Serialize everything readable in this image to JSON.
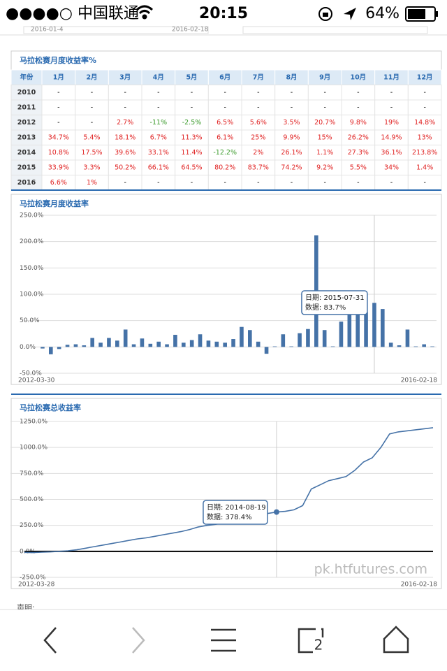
{
  "status_bar": {
    "carrier": "●●●●○ 中国联通",
    "time": "20:15",
    "battery": "64%"
  },
  "top_row": [
    "2016-01-4",
    "2016-02-18"
  ],
  "table": {
    "title": "马拉松赛月度收益率%",
    "header": [
      "年份",
      "1月",
      "2月",
      "3月",
      "4月",
      "5月",
      "6月",
      "7月",
      "8月",
      "9月",
      "10月",
      "11月",
      "12月"
    ],
    "rows": [
      [
        "2010",
        "-",
        "-",
        "-",
        "-",
        "-",
        "-",
        "-",
        "-",
        "-",
        "-",
        "-",
        "-"
      ],
      [
        "2011",
        "-",
        "-",
        "-",
        "-",
        "-",
        "-",
        "-",
        "-",
        "-",
        "-",
        "-",
        "-"
      ],
      [
        "2012",
        "-",
        "-",
        "2.7%",
        "-11%",
        "-2.5%",
        "6.5%",
        "5.6%",
        "3.5%",
        "20.7%",
        "9.8%",
        "19%",
        "14.8%"
      ],
      [
        "2013",
        "34.7%",
        "5.4%",
        "18.1%",
        "6.7%",
        "11.3%",
        "6.1%",
        "25%",
        "9.9%",
        "15%",
        "26.2%",
        "14.9%",
        "13%"
      ],
      [
        "2014",
        "10.8%",
        "17.5%",
        "39.6%",
        "33.1%",
        "11.4%",
        "-12.2%",
        "2%",
        "26.1%",
        "1.1%",
        "27.3%",
        "36.1%",
        "213.8%"
      ],
      [
        "2015",
        "33.9%",
        "3.3%",
        "50.2%",
        "66.1%",
        "64.5%",
        "80.2%",
        "83.7%",
        "74.2%",
        "9.2%",
        "5.5%",
        "34%",
        "1.4%"
      ],
      [
        "2016",
        "6.6%",
        "1%",
        "-",
        "-",
        "-",
        "-",
        "-",
        "-",
        "-",
        "-",
        "-",
        "-"
      ]
    ]
  },
  "chart_data": [
    {
      "type": "bar",
      "title": "马拉松赛月度收益率",
      "categories": [
        "2012-03-30",
        null,
        null,
        null,
        null,
        null,
        null,
        null,
        null,
        null,
        null,
        null,
        null,
        null,
        null,
        null,
        null,
        null,
        null,
        null,
        null,
        null,
        null,
        null,
        null,
        null,
        null,
        null,
        null,
        null,
        null,
        null,
        null,
        null,
        null,
        null,
        null,
        null,
        null,
        null,
        null,
        null,
        null,
        null,
        null,
        null,
        null,
        "2016-02-18"
      ],
      "values": [
        -3,
        -14,
        -4,
        4,
        5,
        3,
        17,
        8,
        17,
        12,
        33,
        5,
        16,
        6,
        10,
        5,
        23,
        8,
        13,
        24,
        12,
        10,
        8,
        15,
        38,
        32,
        10,
        -13,
        1,
        24,
        1,
        26,
        34,
        212,
        32,
        1,
        48,
        65,
        64,
        66,
        83.7,
        72,
        8,
        3,
        33,
        1,
        5,
        1
      ],
      "color": "#4572a7",
      "ylim": [
        -50,
        250
      ],
      "yticks": [
        {
          "value": -50,
          "label": "-50.0%"
        },
        {
          "value": 0,
          "label": "0.0%"
        },
        {
          "value": 50,
          "label": "50.0%"
        },
        {
          "value": 100,
          "label": "100.0%"
        },
        {
          "value": 150,
          "label": "150.0%"
        },
        {
          "value": 200,
          "label": "200.0%"
        },
        {
          "value": 250,
          "label": "250.0%"
        }
      ],
      "grid": true,
      "annotations": [
        "日期: 2015-07-31",
        "数据: 83.7%"
      ]
    },
    {
      "type": "line",
      "title": "马拉松赛总收益率",
      "categories": [
        "2012-03-28",
        null,
        null,
        null,
        null,
        null,
        null,
        null,
        null,
        null,
        null,
        null,
        null,
        null,
        null,
        null,
        null,
        null,
        null,
        null,
        null,
        null,
        null,
        null,
        null,
        null,
        null,
        null,
        null,
        null,
        null,
        null,
        null,
        null,
        null,
        null,
        null,
        null,
        null,
        null,
        null,
        null,
        null,
        null,
        null,
        null,
        null,
        "2016-02-18"
      ],
      "values": [
        -10,
        -12,
        -8,
        -5,
        0,
        5,
        15,
        30,
        45,
        60,
        75,
        90,
        105,
        120,
        130,
        145,
        160,
        175,
        190,
        210,
        235,
        250,
        260,
        275,
        300,
        330,
        345,
        355,
        365,
        378.4,
        385,
        400,
        440,
        600,
        640,
        680,
        700,
        720,
        780,
        860,
        900,
        1000,
        1130,
        1150,
        1160,
        1170,
        1180,
        1190
      ],
      "color": "#4572a7",
      "ylim": [
        -250,
        1250
      ],
      "yticks": [
        {
          "value": -250,
          "label": "-250.0%"
        },
        {
          "value": 0,
          "label": "0.0%"
        },
        {
          "value": 250,
          "label": "250.0%"
        },
        {
          "value": 500,
          "label": "500.0%"
        },
        {
          "value": 750,
          "label": "750.0%"
        },
        {
          "value": 1000,
          "label": "1000.0%"
        },
        {
          "value": 1250,
          "label": "1250.0%"
        }
      ],
      "grid": true,
      "annotations": [
        "日期: 2014-08-19",
        "数据: 378.4%"
      ]
    }
  ],
  "watermark": "pk.htfutures.com",
  "footer_text": "声明:",
  "nav": {
    "tab_count": "2"
  }
}
